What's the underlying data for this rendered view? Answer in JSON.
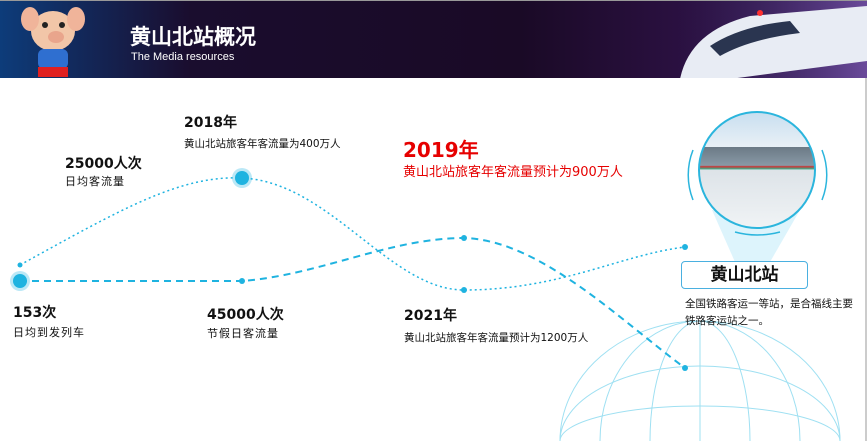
{
  "header": {
    "title": "黄山北站概况",
    "subtitle": "The Media resources",
    "mascot_icon": "pig-mascot",
    "banner_image": "high-speed-train"
  },
  "timeline": [
    {
      "value": "153次",
      "label": "日均到发列车"
    },
    {
      "value": "25000人次",
      "label": "日均客流量"
    },
    {
      "value": "2018年",
      "label": "黄山北站旅客年客流量为400万人"
    },
    {
      "value": "45000人次",
      "label": "节假日客流量"
    },
    {
      "value": "2019年",
      "label": "黄山北站旅客年客流量预计为900万人"
    },
    {
      "value": "2021年",
      "label": "黄山北站旅客年客流量预计为1200万人"
    }
  ],
  "station": {
    "name": "黄山北站",
    "description": "全国铁路客运一等站，是合福线主要铁路客运站之一。"
  },
  "colors": {
    "accent": "#1fb3e0",
    "highlight": "#e60000",
    "header_bg": "#1a0a26"
  }
}
